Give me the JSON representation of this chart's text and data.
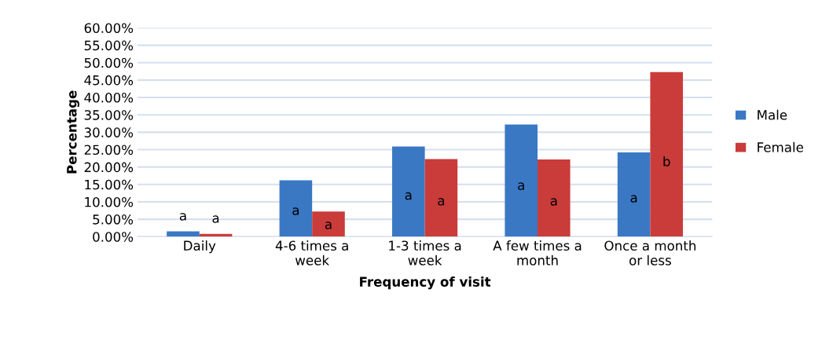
{
  "chart_data": {
    "type": "bar",
    "xlabel": "Frequency of visit",
    "ylabel": "Percentage",
    "categories": [
      "Daily",
      "4-6 times a\nweek",
      "1-3 times a\nweek",
      "A few times a\nmonth",
      "Once a month\nor less"
    ],
    "series": [
      {
        "name": "Male",
        "color": "#3a78c4",
        "values": [
          1.5,
          16.2,
          25.9,
          32.2,
          24.2
        ],
        "value_labels": [
          "a",
          "a",
          "a",
          "a",
          "a"
        ]
      },
      {
        "name": "Female",
        "color": "#c93c3a",
        "values": [
          0.8,
          7.2,
          22.3,
          22.2,
          47.3
        ],
        "value_labels": [
          "a",
          "a",
          "a",
          "a",
          "b"
        ]
      }
    ],
    "ylim": [
      0,
      60
    ],
    "yticks": [
      {
        "value": 0,
        "label": "0.00%"
      },
      {
        "value": 5,
        "label": "5.00%"
      },
      {
        "value": 10,
        "label": "10.00%"
      },
      {
        "value": 15,
        "label": "15.00%"
      },
      {
        "value": 20,
        "label": "20.00%"
      },
      {
        "value": 25,
        "label": "25.00%"
      },
      {
        "value": 30,
        "label": "30.00%"
      },
      {
        "value": 35,
        "label": "35.00%"
      },
      {
        "value": 40,
        "label": "40.00%"
      },
      {
        "value": 45,
        "label": "45.00%"
      },
      {
        "value": 50,
        "label": "50.00%"
      },
      {
        "value": 55,
        "label": "55.00%"
      },
      {
        "value": 60,
        "label": "60.00%"
      }
    ],
    "grid": "y",
    "legend": "right"
  }
}
